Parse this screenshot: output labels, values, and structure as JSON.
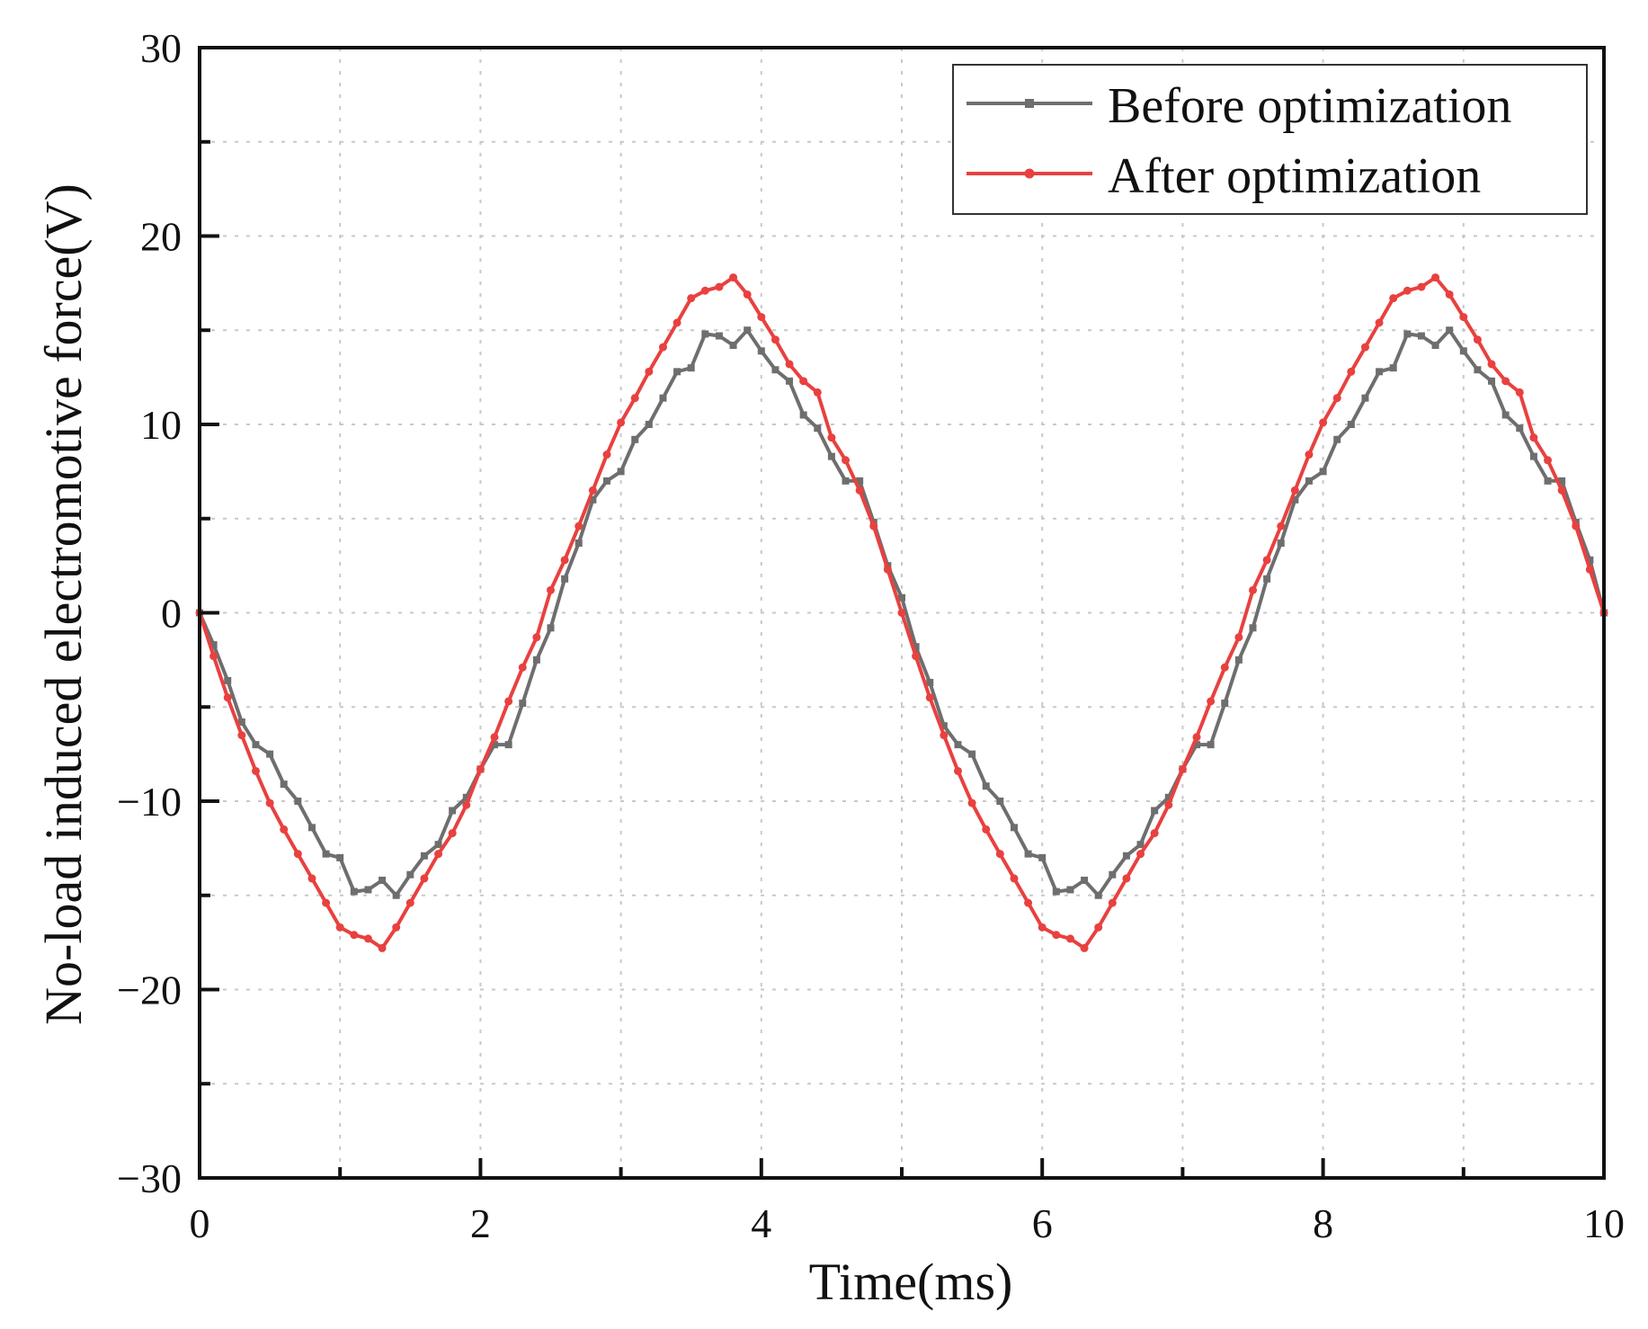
{
  "chart_data": {
    "type": "line",
    "title": "",
    "xlabel": "Time(ms)",
    "ylabel": "No-load induced electromotive force(V)",
    "xlim": [
      0,
      10
    ],
    "ylim": [
      -30,
      30
    ],
    "xticks": [
      0,
      2,
      4,
      6,
      8,
      10
    ],
    "xtick_labels": [
      "0",
      "2",
      "4",
      "6",
      "8",
      "10"
    ],
    "yticks": [
      -30,
      -20,
      -10,
      0,
      10,
      20,
      30
    ],
    "ytick_labels": [
      "−30",
      "−20",
      "−10",
      "0",
      "10",
      "20",
      "30"
    ],
    "grid": true,
    "legend_position": "top-right",
    "x": [
      0,
      0.1,
      0.2,
      0.3,
      0.4,
      0.5,
      0.6,
      0.7,
      0.8,
      0.9,
      1.0,
      1.1,
      1.2,
      1.3,
      1.4,
      1.5,
      1.6,
      1.7,
      1.8,
      1.9,
      2.0,
      2.1,
      2.2,
      2.3,
      2.4,
      2.5,
      2.6,
      2.7,
      2.8,
      2.9,
      3.0,
      3.1,
      3.2,
      3.3,
      3.4,
      3.5,
      3.6,
      3.7,
      3.8,
      3.9,
      4.0,
      4.1,
      4.2,
      4.3,
      4.4,
      4.5,
      4.6,
      4.7,
      4.8,
      4.9,
      5.0,
      5.1,
      5.2,
      5.3,
      5.4,
      5.5,
      5.6,
      5.7,
      5.8,
      5.9,
      6.0,
      6.1,
      6.2,
      6.3,
      6.4,
      6.5,
      6.6,
      6.7,
      6.8,
      6.9,
      7.0,
      7.1,
      7.2,
      7.3,
      7.4,
      7.5,
      7.6,
      7.7,
      7.8,
      7.9,
      8.0,
      8.1,
      8.2,
      8.3,
      8.4,
      8.5,
      8.6,
      8.7,
      8.8,
      8.9,
      9.0,
      9.1,
      9.2,
      9.3,
      9.4,
      9.5,
      9.6,
      9.7,
      9.8,
      9.9,
      10.0
    ],
    "series": [
      {
        "name": "Before optimization",
        "color": "#6e6e6e",
        "values": [
          0.0,
          -1.7,
          -3.6,
          -5.8,
          -7.0,
          -7.5,
          -9.1,
          -10.0,
          -11.4,
          -12.8,
          -13.0,
          -14.8,
          -14.7,
          -14.2,
          -15.0,
          -13.9,
          -12.9,
          -12.3,
          -10.5,
          -9.8,
          -8.3,
          -7.0,
          -7.0,
          -4.8,
          -2.5,
          -0.8,
          1.8,
          3.7,
          6.0,
          7.0,
          7.5,
          9.2,
          10.0,
          11.4,
          12.8,
          13.0,
          14.8,
          14.7,
          14.2,
          15.0,
          13.9,
          12.9,
          12.3,
          10.5,
          9.8,
          8.3,
          7.0,
          7.0,
          4.8,
          2.5,
          0.8,
          -1.8,
          -3.7,
          -6.0,
          -7.0,
          -7.5,
          -9.2,
          -10.0,
          -11.4,
          -12.8,
          -13.0,
          -14.8,
          -14.7,
          -14.2,
          -15.0,
          -13.9,
          -12.9,
          -12.3,
          -10.5,
          -9.8,
          -8.3,
          -7.0,
          -7.0,
          -4.8,
          -2.5,
          -0.8,
          1.8,
          3.7,
          6.0,
          7.0,
          7.5,
          9.2,
          10.0,
          11.4,
          12.8,
          13.0,
          14.8,
          14.7,
          14.2,
          15.0,
          13.9,
          12.9,
          12.3,
          10.5,
          9.8,
          8.3,
          7.0,
          7.0,
          4.8,
          2.8,
          0.0
        ]
      },
      {
        "name": "After optimization",
        "color": "#e8413f",
        "values": [
          0.0,
          -2.3,
          -4.5,
          -6.5,
          -8.4,
          -10.1,
          -11.5,
          -12.8,
          -14.1,
          -15.4,
          -16.7,
          -17.1,
          -17.3,
          -17.8,
          -16.7,
          -15.4,
          -14.1,
          -12.8,
          -11.7,
          -10.2,
          -8.3,
          -6.6,
          -4.7,
          -2.9,
          -1.3,
          1.2,
          2.8,
          4.6,
          6.5,
          8.4,
          10.1,
          11.4,
          12.8,
          14.1,
          15.4,
          16.7,
          17.1,
          17.3,
          17.8,
          16.9,
          15.7,
          14.5,
          13.2,
          12.3,
          11.7,
          9.3,
          8.1,
          6.5,
          4.6,
          2.3,
          0.0,
          -2.3,
          -4.5,
          -6.5,
          -8.4,
          -10.1,
          -11.5,
          -12.8,
          -14.1,
          -15.4,
          -16.7,
          -17.1,
          -17.3,
          -17.8,
          -16.7,
          -15.4,
          -14.1,
          -12.8,
          -11.7,
          -10.2,
          -8.3,
          -6.6,
          -4.7,
          -2.9,
          -1.3,
          1.2,
          2.8,
          4.6,
          6.5,
          8.4,
          10.1,
          11.4,
          12.8,
          14.1,
          15.4,
          16.7,
          17.1,
          17.3,
          17.8,
          16.9,
          15.7,
          14.5,
          13.2,
          12.3,
          11.7,
          9.3,
          8.1,
          6.5,
          4.6,
          2.3,
          0.0
        ]
      }
    ]
  }
}
